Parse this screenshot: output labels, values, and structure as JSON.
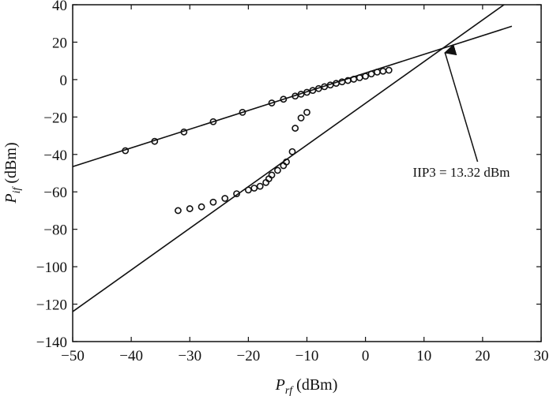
{
  "chart_data": {
    "type": "scatter",
    "xlabel_main": "P",
    "xlabel_sub": "rf",
    "xlabel_unit": " (dBm)",
    "ylabel_main": "P",
    "ylabel_sub": "if",
    "ylabel_unit": " (dBm)",
    "xlim": [
      -50,
      30
    ],
    "ylim": [
      -140,
      40
    ],
    "xticks": [
      -50,
      -40,
      -30,
      -20,
      -10,
      0,
      10,
      20,
      30
    ],
    "yticks": [
      40,
      20,
      0,
      -20,
      -40,
      -60,
      -80,
      -100,
      -120,
      -140
    ],
    "grid": false,
    "series": [
      {
        "marker": "circle",
        "points": [
          [
            -41,
            -38
          ],
          [
            -36,
            -33
          ],
          [
            -31,
            -28
          ],
          [
            -26,
            -22.5
          ],
          [
            -21,
            -17.5
          ],
          [
            -16,
            -12.5
          ],
          [
            -14,
            -10.5
          ],
          [
            -12,
            -8.8
          ],
          [
            -11,
            -7.8
          ],
          [
            -10,
            -6.8
          ],
          [
            -9,
            -5.8
          ],
          [
            -8,
            -4.8
          ],
          [
            -7,
            -3.8
          ],
          [
            -6,
            -2.9
          ],
          [
            -5,
            -2
          ],
          [
            -4,
            -1.2
          ],
          [
            -3,
            -0.5
          ],
          [
            -2,
            0.2
          ],
          [
            -1,
            1
          ],
          [
            0,
            1.8
          ],
          [
            1,
            3
          ],
          [
            2,
            4
          ],
          [
            3,
            4.5
          ],
          [
            4,
            5
          ]
        ]
      },
      {
        "marker": "circle",
        "points": [
          [
            -32,
            -70
          ],
          [
            -30,
            -69
          ],
          [
            -28,
            -68
          ],
          [
            -26,
            -65.5
          ],
          [
            -24,
            -63.5
          ],
          [
            -22,
            -61
          ],
          [
            -20,
            -59
          ],
          [
            -19,
            -58
          ],
          [
            -18,
            -57
          ],
          [
            -17,
            -55
          ],
          [
            -16.5,
            -53
          ],
          [
            -16,
            -51
          ],
          [
            -15,
            -48.5
          ],
          [
            -14,
            -46
          ],
          [
            -13.5,
            -44
          ],
          [
            -12.5,
            -38.5
          ],
          [
            -12,
            -26
          ],
          [
            -11,
            -20.5
          ],
          [
            -10,
            -17.5
          ]
        ]
      },
      {
        "marker": "line",
        "points": [
          [
            -50,
            -46.5
          ],
          [
            25,
            28.5
          ]
        ]
      },
      {
        "marker": "line",
        "points": [
          [
            -50,
            -124
          ],
          [
            25,
            43
          ]
        ]
      }
    ],
    "annotation": {
      "text": "IIP3 = 13.32 dBm",
      "target": [
        13.32,
        17.3
      ]
    }
  }
}
